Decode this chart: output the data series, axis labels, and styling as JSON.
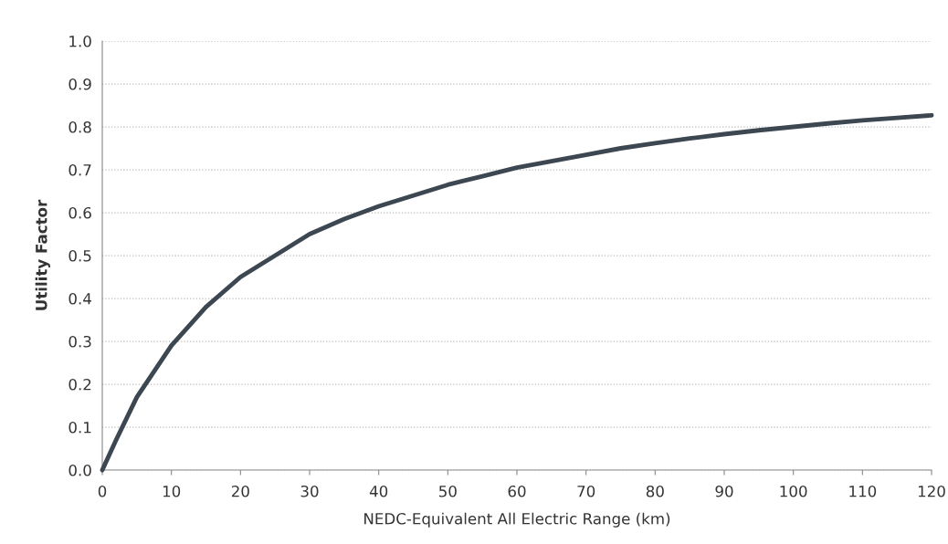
{
  "chart_data": {
    "type": "line",
    "xlabel": "NEDC-Equivalent All Electric Range (km)",
    "ylabel": "Utility Factor",
    "x": [
      0,
      2,
      5,
      10,
      15,
      20,
      25,
      30,
      35,
      40,
      45,
      50,
      55,
      60,
      65,
      70,
      75,
      80,
      85,
      90,
      95,
      100,
      105,
      110,
      115,
      120
    ],
    "series": [
      {
        "color": "#3d4751",
        "values": [
          0,
          0.07,
          0.17,
          0.29,
          0.38,
          0.45,
          0.5,
          0.55,
          0.585,
          0.615,
          0.64,
          0.665,
          0.685,
          0.705,
          0.72,
          0.735,
          0.75,
          0.762,
          0.773,
          0.783,
          0.792,
          0.8,
          0.808,
          0.815,
          0.821,
          0.827
        ]
      }
    ],
    "xlim": [
      0,
      120
    ],
    "xticks": [
      0,
      10,
      20,
      30,
      40,
      50,
      60,
      70,
      80,
      90,
      100,
      110,
      120
    ],
    "ylim": [
      0,
      1
    ],
    "yticks": [
      {
        "value": 0,
        "label": "0.0"
      },
      0.1,
      0.2,
      0.3,
      0.4,
      0.5,
      0.6,
      0.7,
      0.8,
      0.9,
      {
        "value": 1,
        "label": "1.0"
      }
    ],
    "grid": "y",
    "marker": "none",
    "line_style": "solid"
  }
}
